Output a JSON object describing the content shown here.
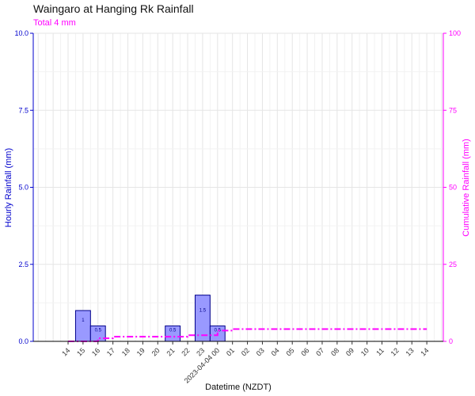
{
  "chart_data": {
    "type": "bar",
    "title": "Waingaro at Hanging Rk Rainfall",
    "subtitle": "Total 4 mm",
    "xlabel": "Datetime (NZDT)",
    "ylabel": "Hourly Rainfall (mm)",
    "y2label": "Cumulative Rainfall (mm)",
    "ylim": [
      0,
      10
    ],
    "y2lim": [
      0,
      100
    ],
    "y_ticks": [
      "0.0",
      "2.5",
      "5.0",
      "7.5",
      "10.0"
    ],
    "y2_ticks": [
      "0",
      "25",
      "50",
      "75",
      "100"
    ],
    "x_tick_labels": [
      "14",
      "15",
      "16",
      "17",
      "18",
      "19",
      "20",
      "21",
      "22",
      "23",
      "2023-04-04 00",
      "01",
      "02",
      "03",
      "04",
      "05",
      "06",
      "07",
      "08",
      "09",
      "10",
      "11",
      "12",
      "13",
      "14"
    ],
    "hourly_series": {
      "name": "Hourly Rainfall (mm)",
      "points": [
        {
          "hour": "15",
          "value": 1,
          "label": "1"
        },
        {
          "hour": "16",
          "value": 0.5,
          "label": "0.5"
        },
        {
          "hour": "21",
          "value": 0.5,
          "label": "0.5"
        },
        {
          "hour": "23",
          "value": 1.5,
          "label": "1.5"
        },
        {
          "hour": "00",
          "value": 0.5,
          "label": "0.5"
        }
      ]
    },
    "cumulative_series": {
      "name": "Cumulative Rainfall (mm)",
      "x": [
        "14",
        "15",
        "16",
        "17",
        "18",
        "19",
        "20",
        "21",
        "22",
        "23",
        "00",
        "01",
        "02",
        "03",
        "04",
        "05",
        "06",
        "07",
        "08",
        "09",
        "10",
        "11",
        "12",
        "13",
        "14"
      ],
      "values": [
        0,
        0,
        1,
        1.5,
        1.5,
        1.5,
        1.5,
        1.5,
        2,
        2,
        3.5,
        4,
        4,
        4,
        4,
        4,
        4,
        4,
        4,
        4,
        4,
        4,
        4,
        4,
        4
      ]
    },
    "colors": {
      "bar_fill": "#9999ff",
      "bar_stroke": "#00008b",
      "left_axis": "#0000cd",
      "right_axis": "#ff00ff",
      "cumulative_line": "#ff00ff",
      "grid": "#e5e5e5"
    },
    "grid": true
  }
}
